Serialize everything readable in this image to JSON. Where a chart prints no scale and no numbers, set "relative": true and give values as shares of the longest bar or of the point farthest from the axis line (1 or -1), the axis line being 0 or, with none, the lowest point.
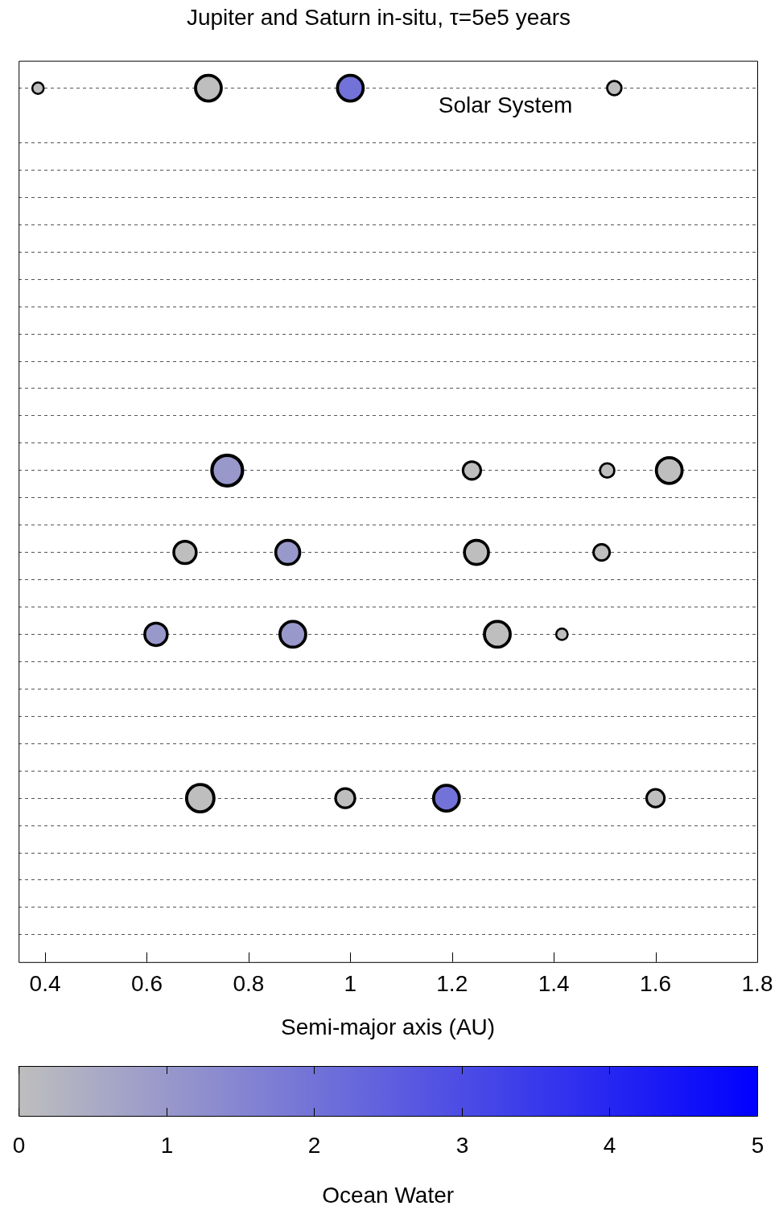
{
  "chart_data": {
    "type": "bubble",
    "title": "Jupiter and Saturn in-situ, τ=5e5 years",
    "xlabel": "Semi-major axis (AU)",
    "clabel": "Ocean Water",
    "xlim": [
      0.348,
      1.8
    ],
    "xticks": [
      0.4,
      0.6,
      0.8,
      1,
      1.2,
      1.4,
      1.6,
      1.8
    ],
    "relative": true,
    "tick_labels": "x",
    "grid": "y",
    "line_style": "dashed",
    "legend": false,
    "marker": "circle",
    "clim": [
      0,
      5
    ],
    "cticks": [
      0,
      1,
      2,
      3,
      4,
      5
    ],
    "annotations": [
      "Solar System"
    ],
    "series": [
      {
        "x": [
          0.386,
          0.721,
          1.0,
          1.519,
          0.758,
          1.239,
          1.505,
          1.627,
          0.675,
          0.877,
          1.248,
          1.494,
          0.618,
          0.887,
          1.289,
          1.416,
          0.705,
          0.99,
          1.189,
          1.6
        ],
        "values": [
          1,
          1,
          1,
          1,
          0.5625,
          0.5625,
          0.5625,
          0.5625,
          0.46875,
          0.46875,
          0.46875,
          0.46875,
          0.375,
          0.375,
          0.375,
          0.375,
          0.1875,
          0.1875,
          0.1875,
          0.1875
        ],
        "sizes": [
          0.14,
          0.71,
          0.71,
          0.22,
          1,
          0.34,
          0.22,
          0.71,
          0.54,
          0.62,
          0.62,
          0.28,
          0.54,
          0.71,
          0.71,
          0.14,
          0.8,
          0.4,
          0.71,
          0.34
        ],
        "cvalues": [
          0,
          0,
          2,
          0,
          1,
          0,
          0,
          0,
          0,
          1,
          0,
          0,
          1,
          1,
          0,
          0,
          0,
          0,
          2,
          0
        ]
      }
    ]
  }
}
